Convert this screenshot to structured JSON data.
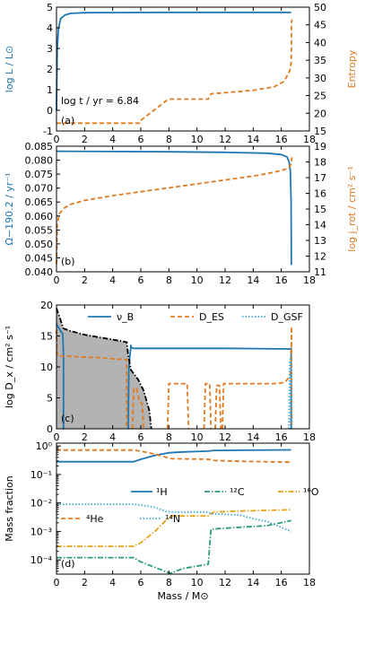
{
  "colors": {
    "blue": "#1f77b4",
    "orange": "#e07b20",
    "green": "#2a9d6f",
    "gold": "#e8a317",
    "cyan": "#3fa7d6",
    "gray": "#b3b3b3"
  },
  "chart_data": [
    {
      "id": "a",
      "type": "line",
      "panel_label": "(a)",
      "annotation": "log t / yr = 6.84",
      "xlabel": "",
      "ylabel": "log L / L⊙",
      "ylabel_right": "Entropy",
      "xlim": [
        0,
        18
      ],
      "ylim": [
        -1,
        5
      ],
      "ylim_right": [
        15,
        50
      ],
      "xticks": [
        0,
        2,
        4,
        6,
        8,
        10,
        12,
        14,
        16,
        18
      ],
      "yticks": [
        -1,
        0,
        1,
        2,
        3,
        4,
        5
      ],
      "yticks_right": [
        15,
        20,
        25,
        30,
        35,
        40,
        45,
        50
      ],
      "series": [
        {
          "axis": "left",
          "color": "blue",
          "style": "solid",
          "x": [
            0,
            0.05,
            0.15,
            0.3,
            0.6,
            1,
            2,
            4,
            8,
            12,
            16.7
          ],
          "y": [
            0,
            3.0,
            4.0,
            4.45,
            4.62,
            4.7,
            4.73,
            4.74,
            4.75,
            4.75,
            4.75
          ]
        },
        {
          "axis": "right",
          "color": "orange",
          "style": "dashed",
          "x": [
            0,
            5.9,
            6.0,
            7.8,
            8.0,
            10.8,
            11.0,
            14,
            15.5,
            16.2,
            16.6,
            16.7,
            16.72,
            16.72,
            16.75
          ],
          "y": [
            17.2,
            17.2,
            18.0,
            23.5,
            24.0,
            24.0,
            25.5,
            26.5,
            27.5,
            29.0,
            32.0,
            34,
            38,
            45,
            46.5
          ]
        }
      ]
    },
    {
      "id": "b",
      "type": "line",
      "panel_label": "(b)",
      "xlabel": "",
      "ylabel": "Ω−190.2 / yr⁻¹",
      "ylabel_right": "log j_rot / cm² s⁻¹",
      "xlim": [
        0,
        18
      ],
      "ylim": [
        0.04,
        0.085
      ],
      "ylim_right": [
        11,
        19
      ],
      "xticks": [
        0,
        2,
        4,
        6,
        8,
        10,
        12,
        14,
        16,
        18
      ],
      "yticks": [
        0.04,
        0.045,
        0.05,
        0.055,
        0.06,
        0.065,
        0.07,
        0.075,
        0.08,
        0.085
      ],
      "ytick_labels": [
        "0.040",
        "0.045",
        "0.050",
        "0.055",
        "0.060",
        "0.065",
        "0.070",
        "0.075",
        "0.080",
        "0.085"
      ],
      "yticks_right": [
        11,
        12,
        13,
        14,
        15,
        16,
        17,
        18,
        19
      ],
      "series": [
        {
          "axis": "left",
          "color": "blue",
          "style": "solid",
          "x": [
            0,
            4,
            8,
            12,
            15,
            16,
            16.4,
            16.55,
            16.65,
            16.7,
            16.72
          ],
          "y": [
            0.0832,
            0.0831,
            0.083,
            0.0828,
            0.0825,
            0.082,
            0.0812,
            0.0795,
            0.076,
            0.065,
            0.0425
          ]
        },
        {
          "axis": "right",
          "color": "orange",
          "style": "dashed",
          "x": [
            0,
            0.05,
            0.2,
            0.6,
            1,
            2,
            4,
            6,
            8,
            10,
            12,
            14,
            15,
            16,
            16.5,
            16.7,
            16.75
          ],
          "y": [
            11.5,
            14.0,
            14.7,
            15.1,
            15.3,
            15.55,
            15.85,
            16.1,
            16.35,
            16.6,
            16.85,
            17.1,
            17.25,
            17.45,
            17.6,
            17.85,
            18.3
          ]
        }
      ]
    },
    {
      "id": "c",
      "type": "line",
      "panel_label": "(c)",
      "xlabel": "",
      "ylabel": "log D_x / cm² s⁻¹",
      "xlim": [
        0,
        18
      ],
      "ylim": [
        0,
        20
      ],
      "xticks": [
        0,
        2,
        4,
        6,
        8,
        10,
        12,
        14,
        16,
        18
      ],
      "yticks": [
        0,
        5,
        10,
        15,
        20
      ],
      "legend": {
        "placement": "top",
        "entries": [
          "ν_B",
          "D_ES",
          "D_GSF"
        ]
      },
      "shaded_region": {
        "x": [
          0,
          0.5,
          1,
          2,
          3,
          4,
          5,
          5.1,
          5.3,
          5.8,
          6.2,
          6.6,
          6.75,
          6.6,
          6.2,
          5.7,
          5.2,
          5.0,
          0
        ],
        "y": [
          19.5,
          16.2,
          15.8,
          15.2,
          14.8,
          14.4,
          14.0,
          12.0,
          9.5,
          8.0,
          6.2,
          3.0,
          0,
          0,
          0,
          0,
          0,
          0,
          0
        ]
      },
      "series": [
        {
          "name": "ν_B",
          "color": "blue",
          "style": "solid",
          "segments": [
            {
              "x": [
                0,
                0.1,
                0.3,
                0.45,
                0.5,
                0.5,
                0.55
              ],
              "y": [
                17,
                16.5,
                15.8,
                15.3,
                12.0,
                0,
                0
              ]
            },
            {
              "x": [
                5.1,
                5.15,
                5.3,
                5.3,
                5.35,
                5.5,
                6,
                8,
                12,
                16.5,
                16.65,
                16.7,
                16.7
              ],
              "y": [
                0,
                10,
                13.5,
                13.2,
                13.1,
                13.0,
                13.0,
                13.0,
                13.0,
                12.9,
                12.9,
                13.0,
                0
              ]
            }
          ]
        },
        {
          "name": "D_ES",
          "color": "orange",
          "style": "dashed",
          "segments": [
            {
              "x": [
                0,
                0.05,
                1,
                2,
                3,
                4,
                5.0,
                5.0
              ],
              "y": [
                16,
                11.8,
                11.7,
                11.6,
                11.5,
                11.3,
                11.2,
                0
              ]
            },
            {
              "x": [
                5.4,
                5.5,
                5.7,
                5.9,
                6.1,
                6.2
              ],
              "y": [
                0,
                6.5,
                6.5,
                4.5,
                4.0,
                0
              ]
            },
            {
              "x": [
                7.9,
                8.0,
                9.3,
                9.4
              ],
              "y": [
                0,
                7.3,
                7.3,
                0
              ]
            },
            {
              "x": [
                10.5,
                10.6,
                10.9,
                11.0
              ],
              "y": [
                0,
                7.3,
                7.3,
                0
              ]
            },
            {
              "x": [
                11.3,
                11.4,
                11.6,
                11.7
              ],
              "y": [
                0,
                7.0,
                7.0,
                0
              ]
            },
            {
              "x": [
                11.8,
                11.9,
                15.8,
                16.3,
                16.6,
                16.72,
                16.72,
                16.75
              ],
              "y": [
                0,
                7.3,
                7.3,
                7.6,
                8.5,
                10.0,
                16.5,
                0
              ]
            }
          ]
        },
        {
          "name": "D_GSF",
          "color": "cyan",
          "style": "dotted",
          "segments": [
            {
              "x": [
                16.55,
                16.6,
                16.7,
                16.75
              ],
              "y": [
                0,
                11.0,
                11.5,
                0
              ]
            }
          ]
        },
        {
          "name": "",
          "color": "black",
          "style": "dashdot",
          "segments": [
            {
              "x": [
                0,
                0.5,
                1,
                2,
                3,
                4,
                5,
                5.1,
                5.3,
                5.8,
                6.2,
                6.6,
                6.75
              ],
              "y": [
                19.5,
                16.2,
                15.8,
                15.2,
                14.8,
                14.4,
                14.0,
                12.0,
                9.5,
                8.0,
                6.2,
                3.0,
                0
              ]
            }
          ]
        }
      ]
    },
    {
      "id": "d",
      "type": "line",
      "panel_label": "(d)",
      "xlabel": "Mass / M⊙",
      "ylabel": "Mass fraction",
      "xlim": [
        0,
        18
      ],
      "ylim_log": [
        -4.5,
        0.1
      ],
      "yscale": "log",
      "xticks": [
        0,
        2,
        4,
        6,
        8,
        10,
        12,
        14,
        16,
        18
      ],
      "yticks_exp": [
        -4,
        -3,
        -2,
        -1,
        0
      ],
      "ytick_labels": [
        "10⁻⁴",
        "10⁻³",
        "10⁻²",
        "10⁻¹",
        "10⁰"
      ],
      "legend": {
        "placement": "center",
        "entries": [
          "¹H",
          "¹²C",
          "¹⁶O",
          "⁴He",
          "¹⁴N"
        ]
      },
      "series": [
        {
          "name": "¹H",
          "color": "blue",
          "style": "solid",
          "x": [
            0,
            5.5,
            6.0,
            7.0,
            8.0,
            9.0,
            10.8,
            11.2,
            13,
            16.7
          ],
          "y": [
            0.28,
            0.28,
            0.34,
            0.47,
            0.58,
            0.62,
            0.66,
            0.7,
            0.71,
            0.73
          ]
        },
        {
          "name": "¹²C",
          "color": "green",
          "style": "dashdot",
          "x": [
            0,
            5.5,
            6.0,
            7.0,
            8.0,
            8.2,
            9.0,
            10.8,
            11.0,
            13,
            15,
            16.7
          ],
          "y": [
            0.00012,
            0.00012,
            8.5e-05,
            5.5e-05,
            3.5e-05,
            3.5e-05,
            5e-05,
            7e-05,
            0.0012,
            0.0014,
            0.0016,
            0.0024
          ]
        },
        {
          "name": "¹⁶O",
          "color": "gold",
          "style": "dashdot",
          "x": [
            0,
            5.5,
            6.0,
            7.0,
            7.8,
            8.2,
            10.8,
            11.2,
            13,
            16.7
          ],
          "y": [
            0.0003,
            0.0003,
            0.0004,
            0.001,
            0.0025,
            0.0035,
            0.0035,
            0.0048,
            0.0052,
            0.0058
          ]
        },
        {
          "name": "⁴He",
          "color": "orange",
          "style": "dashed",
          "x": [
            0,
            5.5,
            6.0,
            7.0,
            7.8,
            8.2,
            10.8,
            11.2,
            13,
            16.7
          ],
          "y": [
            0.72,
            0.72,
            0.66,
            0.52,
            0.4,
            0.36,
            0.34,
            0.31,
            0.29,
            0.27
          ]
        },
        {
          "name": "¹⁴N",
          "color": "cyan",
          "style": "dotted",
          "x": [
            0,
            5.5,
            6.0,
            7.0,
            7.8,
            8.2,
            10.8,
            11.0,
            13,
            14,
            15,
            16.7
          ],
          "y": [
            0.009,
            0.009,
            0.0085,
            0.007,
            0.005,
            0.0048,
            0.0048,
            0.0042,
            0.0038,
            0.0028,
            0.0022,
            0.001
          ]
        }
      ]
    }
  ]
}
